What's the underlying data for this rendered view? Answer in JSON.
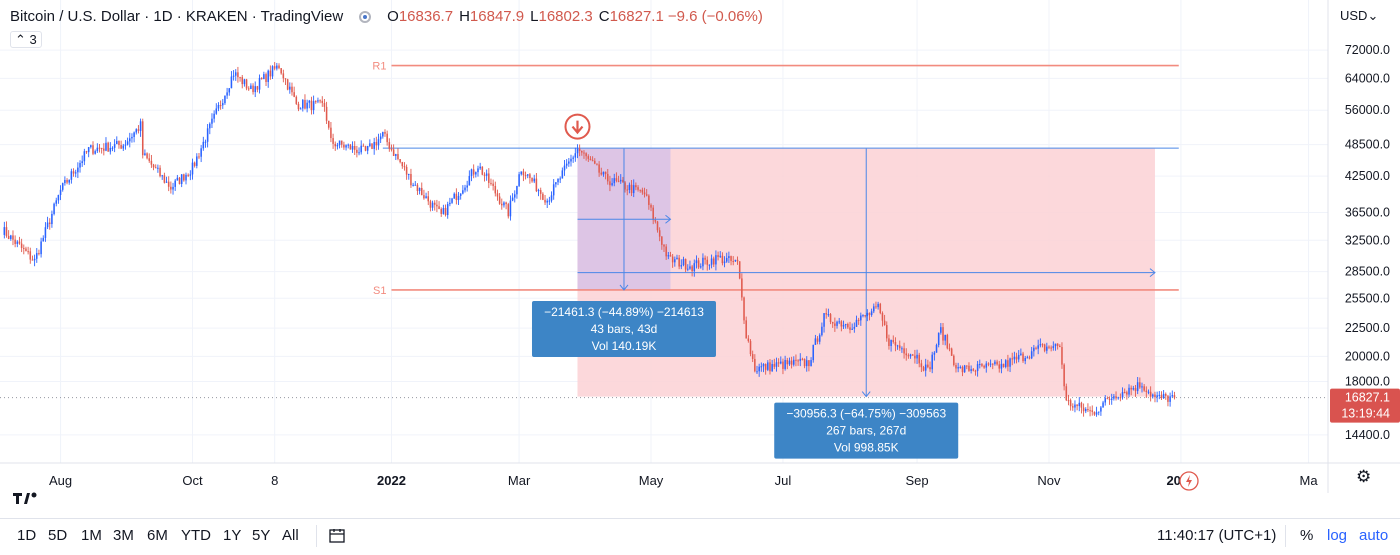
{
  "header": {
    "title": "Bitcoin / U.S. Dollar · 1D · KRAKEN · TradingView",
    "ohlc": [
      {
        "key": "O",
        "value": "16836.7"
      },
      {
        "key": "H",
        "value": "16847.9"
      },
      {
        "key": "L",
        "value": "16802.3"
      },
      {
        "key": "C",
        "value": "16827.1"
      }
    ],
    "change": "−9.6 (−0.06%)",
    "indicator_toggle": "3",
    "currency": "USD"
  },
  "bottom_toolbar": {
    "ranges": [
      "1D",
      "5D",
      "1M",
      "3M",
      "6M",
      "YTD",
      "1Y",
      "5Y",
      "All"
    ],
    "clock": "11:40:17 (UTC+1)",
    "percent": "%",
    "log": "log",
    "auto": "auto"
  },
  "colors": {
    "up": "#2962ff",
    "down": "#e05a4e",
    "pivot": "#f28b7f",
    "projection_fill": "#fcd1d5",
    "projection_fill_dark": "#d9c3e6",
    "measure_line": "#4a86e8",
    "label_bg": "#3d85c6",
    "price_tag": "#d9534f",
    "arrow_marker": "#e05a4e"
  },
  "chart_data": {
    "type": "candlestick",
    "symbol": "Bitcoin / U.S. Dollar",
    "interval": "1D",
    "exchange": "KRAKEN",
    "y_axis": {
      "ticks": [
        72000,
        64000,
        56000,
        48500,
        42500,
        36500,
        32500,
        28500,
        25500,
        22500,
        20000,
        18000,
        14400
      ],
      "tick_labels": [
        "72000.0",
        "64000.0",
        "56000.0",
        "48500.0",
        "42500.0",
        "36500.0",
        "32500.0",
        "28500.0",
        "25500.0",
        "22500.0",
        "20000.0",
        "18000.0",
        "14400.0"
      ],
      "scale": "log",
      "range": [
        12800,
        79000
      ]
    },
    "x_axis": {
      "labels": [
        {
          "date": "2021-08-01",
          "text": "Aug"
        },
        {
          "date": "2021-10-01",
          "text": "Oct"
        },
        {
          "date": "2021-11-08",
          "text": "8"
        },
        {
          "date": "2022-01-01",
          "text": "2022"
        },
        {
          "date": "2022-03-01",
          "text": "Mar"
        },
        {
          "date": "2022-05-01",
          "text": "May"
        },
        {
          "date": "2022-07-01",
          "text": "Jul"
        },
        {
          "date": "2022-09-01",
          "text": "Sep"
        },
        {
          "date": "2022-11-01",
          "text": "Nov"
        },
        {
          "date": "2023-01-01",
          "text": "2023"
        },
        {
          "date": "2023-03-01",
          "text": "Ma"
        }
      ],
      "range": [
        "2021-07-04",
        "2023-03-10"
      ]
    },
    "series_anchors": [
      {
        "date": "2021-07-05",
        "price": 34000
      },
      {
        "date": "2021-07-20",
        "price": 29800
      },
      {
        "date": "2021-08-01",
        "price": 40000
      },
      {
        "date": "2021-08-14",
        "price": 47500
      },
      {
        "date": "2021-08-30",
        "price": 48500
      },
      {
        "date": "2021-09-07",
        "price": 52500
      },
      {
        "date": "2021-09-08",
        "price": 46500
      },
      {
        "date": "2021-09-21",
        "price": 40500
      },
      {
        "date": "2021-10-01",
        "price": 44000
      },
      {
        "date": "2021-10-20",
        "price": 65500
      },
      {
        "date": "2021-10-28",
        "price": 61000
      },
      {
        "date": "2021-11-10",
        "price": 67500
      },
      {
        "date": "2021-11-18",
        "price": 57500
      },
      {
        "date": "2021-12-01",
        "price": 57000
      },
      {
        "date": "2021-12-04",
        "price": 49000
      },
      {
        "date": "2021-12-20",
        "price": 47000
      },
      {
        "date": "2021-12-28",
        "price": 50500
      },
      {
        "date": "2022-01-10",
        "price": 41800
      },
      {
        "date": "2022-01-24",
        "price": 36000
      },
      {
        "date": "2022-02-10",
        "price": 44500
      },
      {
        "date": "2022-02-24",
        "price": 36500
      },
      {
        "date": "2022-03-02",
        "price": 44000
      },
      {
        "date": "2022-03-14",
        "price": 38500
      },
      {
        "date": "2022-03-28",
        "price": 47700
      },
      {
        "date": "2022-04-10",
        "price": 42000
      },
      {
        "date": "2022-04-28",
        "price": 39500
      },
      {
        "date": "2022-05-09",
        "price": 30000
      },
      {
        "date": "2022-05-20",
        "price": 29200
      },
      {
        "date": "2022-06-01",
        "price": 30200
      },
      {
        "date": "2022-06-10",
        "price": 29500
      },
      {
        "date": "2022-06-14",
        "price": 22000
      },
      {
        "date": "2022-06-18",
        "price": 19000
      },
      {
        "date": "2022-06-30",
        "price": 19300
      },
      {
        "date": "2022-07-13",
        "price": 19500
      },
      {
        "date": "2022-07-20",
        "price": 23500
      },
      {
        "date": "2022-08-01",
        "price": 22800
      },
      {
        "date": "2022-08-14",
        "price": 24400
      },
      {
        "date": "2022-08-19",
        "price": 21300
      },
      {
        "date": "2022-09-01",
        "price": 20000
      },
      {
        "date": "2022-09-06",
        "price": 18800
      },
      {
        "date": "2022-09-12",
        "price": 22300
      },
      {
        "date": "2022-09-20",
        "price": 18900
      },
      {
        "date": "2022-10-10",
        "price": 19200
      },
      {
        "date": "2022-10-28",
        "price": 20700
      },
      {
        "date": "2022-11-06",
        "price": 20900
      },
      {
        "date": "2022-11-09",
        "price": 16500
      },
      {
        "date": "2022-11-21",
        "price": 15800
      },
      {
        "date": "2022-12-01",
        "price": 17000
      },
      {
        "date": "2022-12-14",
        "price": 17800
      },
      {
        "date": "2022-12-20",
        "price": 16800
      },
      {
        "date": "2022-12-29",
        "price": 16827.1
      }
    ],
    "pivot_levels": [
      {
        "label": "R1",
        "price": 67500,
        "from": "2022-01-01",
        "to": "2022-12-31"
      },
      {
        "label": "S1",
        "price": 26400,
        "from": "2022-01-01",
        "to": "2022-12-31"
      }
    ],
    "last_price": {
      "price": 16827.1,
      "label": "16827.1",
      "countdown": "13:19:44"
    },
    "measurements": [
      {
        "from": "2022-03-28",
        "to": "2022-05-10",
        "price_from": 47700,
        "price_to": 26400,
        "text": [
          "−21461.3 (−44.89%) −214613",
          "43 bars, 43d",
          "Vol 140.19K"
        ]
      },
      {
        "from": "2022-03-28",
        "to": "2022-12-20",
        "price_from": 47700,
        "price_to": 16900,
        "text": [
          "−30956.3 (−64.75%) −309563",
          "267 bars, 267d",
          "Vol 998.85K"
        ]
      }
    ],
    "top_level_line": {
      "price": 47800,
      "from": "2021-12-28",
      "to": "2022-12-31"
    }
  }
}
